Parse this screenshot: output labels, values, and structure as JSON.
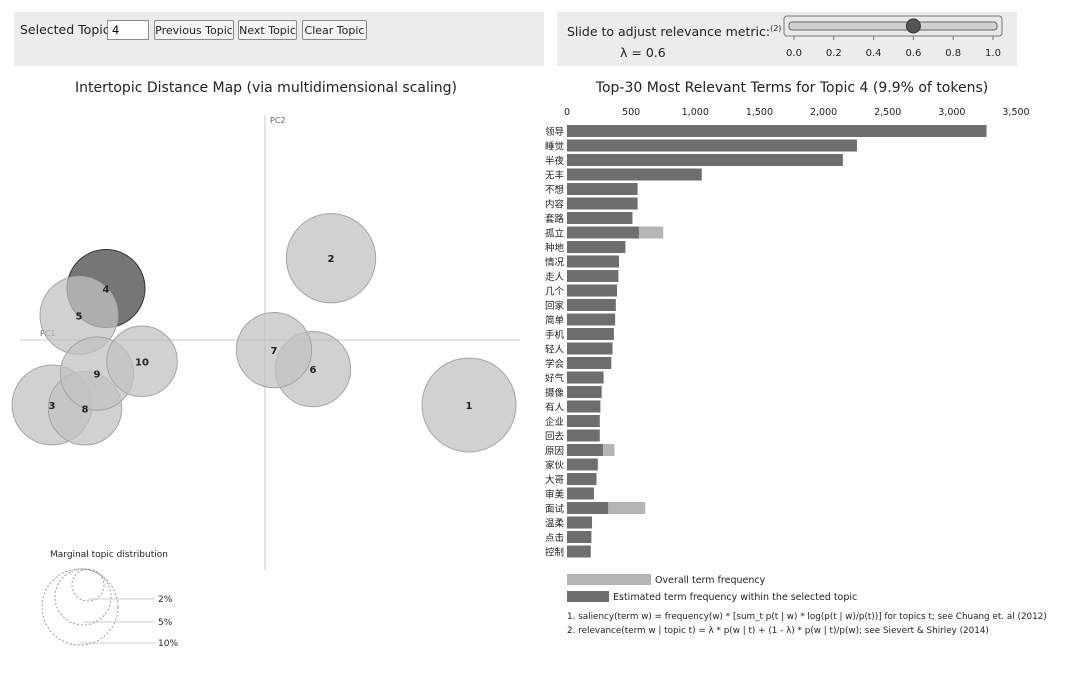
{
  "controls": {
    "selected_topic_label": "Selected Topic:",
    "selected_topic_value": "4",
    "previous_topic_label": "Previous Topic",
    "next_topic_label": "Next Topic",
    "clear_topic_label": "Clear Topic"
  },
  "slider": {
    "label": "Slide to adjust relevance metric:",
    "footnote_ref": "(2)",
    "lambda_text": "λ = 0.6",
    "value": 0.6,
    "ticks": [
      "0.0",
      "0.2",
      "0.4",
      "0.6",
      "0.8",
      "1.0"
    ]
  },
  "chart_data": [
    {
      "type": "scatter",
      "title": "Intertopic Distance Map (via multidimensional scaling)",
      "xlabel": "PC1",
      "ylabel": "PC2",
      "selected_topic": 4,
      "topics": [
        {
          "id": 1,
          "x": 0.68,
          "y": -0.58,
          "radius": 1.0,
          "selected": false
        },
        {
          "id": 2,
          "x": 0.22,
          "y": 0.73,
          "radius": 0.95,
          "selected": false
        },
        {
          "id": 3,
          "x": -0.71,
          "y": -0.58,
          "radius": 0.85,
          "selected": false
        },
        {
          "id": 4,
          "x": -0.53,
          "y": 0.46,
          "radius": 0.83,
          "selected": true
        },
        {
          "id": 5,
          "x": -0.62,
          "y": 0.22,
          "radius": 0.83,
          "selected": false
        },
        {
          "id": 6,
          "x": 0.16,
          "y": -0.26,
          "radius": 0.8,
          "selected": false
        },
        {
          "id": 7,
          "x": 0.03,
          "y": -0.09,
          "radius": 0.8,
          "selected": false
        },
        {
          "id": 8,
          "x": -0.6,
          "y": -0.61,
          "radius": 0.78,
          "selected": false
        },
        {
          "id": 9,
          "x": -0.56,
          "y": -0.3,
          "radius": 0.78,
          "selected": false
        },
        {
          "id": 10,
          "x": -0.41,
          "y": -0.19,
          "radius": 0.75,
          "selected": false
        }
      ],
      "marginal_title": "Marginal topic distribution",
      "marginal_legend": [
        "2%",
        "5%",
        "10%"
      ]
    },
    {
      "type": "bar",
      "title": "Top-30 Most Relevant Terms for Topic 4 (9.9% of tokens)",
      "orientation": "horizontal",
      "xlim": [
        0,
        3500
      ],
      "x_ticks": [
        "0",
        "500",
        "1,000",
        "1,500",
        "2,000",
        "2,500",
        "3,000",
        "3,500"
      ],
      "categories": [
        "领导",
        "睡觉",
        "大半夜",
        "无丰",
        "不想",
        "内容",
        "套路",
        "孤立",
        "种地",
        "情况",
        "走人",
        "几个",
        "回家",
        "简单",
        "手机",
        "年轻人",
        "学会",
        "好气",
        "摄像",
        "所有人",
        "企业",
        "回去",
        "原因",
        "好家伙",
        "大哥",
        "审美",
        "面试",
        "温柔",
        "点击",
        "控制"
      ],
      "series": [
        {
          "name": "Overall term frequency",
          "color": "#b5b5b5",
          "values": [
            3270,
            2260,
            2150,
            1050,
            550,
            550,
            510,
            750,
            455,
            405,
            400,
            390,
            380,
            375,
            365,
            355,
            345,
            285,
            270,
            260,
            255,
            255,
            370,
            240,
            230,
            210,
            610,
            195,
            190,
            185
          ]
        },
        {
          "name": "Estimated term frequency within the selected topic",
          "color": "#6e6e6e",
          "values": [
            3270,
            2260,
            2150,
            1050,
            550,
            550,
            510,
            560,
            455,
            405,
            400,
            390,
            380,
            375,
            365,
            355,
            345,
            285,
            270,
            260,
            255,
            255,
            280,
            240,
            230,
            210,
            320,
            195,
            190,
            185
          ]
        }
      ],
      "footnotes": [
        "1. saliency(term w) = frequency(w) * [sum_t p(t | w) * log(p(t | w)/p(t))] for topics t; see Chuang et. al (2012)",
        "2. relevance(term w | topic t) = λ * p(w | t) + (1 - λ) * p(w | t)/p(w); see Sievert & Shirley (2014)"
      ]
    }
  ]
}
